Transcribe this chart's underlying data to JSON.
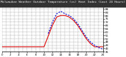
{
  "title": "Milwaukee Weather Outdoor Temperature (vs) Heat Index (Last 24 Hours)",
  "bg_color": "#ffffff",
  "plot_bg": "#ffffff",
  "grid_color": "#888888",
  "ylim": [
    36,
    90
  ],
  "xlim": [
    0,
    24
  ],
  "temp_x": [
    0,
    1,
    2,
    3,
    4,
    5,
    6,
    7,
    8,
    9,
    10,
    11,
    12,
    13,
    14,
    15,
    16,
    17,
    18,
    19,
    20,
    21,
    22,
    23,
    24
  ],
  "temp_y": [
    42,
    42,
    42,
    42,
    42,
    42,
    42,
    42,
    42,
    42,
    42,
    55,
    68,
    78,
    80,
    80,
    78,
    74,
    68,
    60,
    52,
    46,
    42,
    42,
    42
  ],
  "heat_x": [
    11,
    12,
    13,
    14,
    15,
    16,
    17,
    18,
    19,
    20,
    21,
    22,
    23,
    24
  ],
  "heat_y": [
    58,
    72,
    82,
    85,
    82,
    80,
    76,
    70,
    62,
    54,
    48,
    44,
    41,
    39
  ],
  "temp_color": "#dd0000",
  "heat_color": "#0000cc",
  "temp_lw": 0.8,
  "heat_lw": 0.8,
  "title_fontsize": 3.2,
  "tick_fontsize": 2.8,
  "title_bg": "#333333",
  "title_fg": "#ffffff",
  "ytick_interval": 4,
  "xtick_positions": [
    0,
    2,
    4,
    6,
    8,
    10,
    12,
    14,
    16,
    18,
    20,
    22,
    24
  ],
  "vgrid_positions": [
    0,
    1,
    2,
    3,
    4,
    5,
    6,
    7,
    8,
    9,
    10,
    11,
    12,
    13,
    14,
    15,
    16,
    17,
    18,
    19,
    20,
    21,
    22,
    23,
    24
  ]
}
